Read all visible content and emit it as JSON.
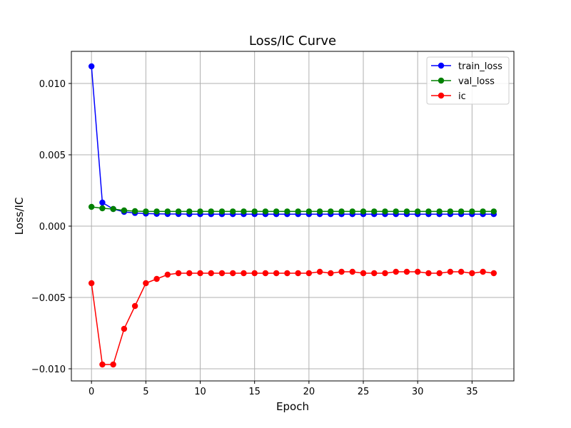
{
  "chart_data": {
    "type": "line",
    "title": "Loss/IC Curve",
    "xlabel": "Epoch",
    "ylabel": "Loss/IC",
    "xlim": [
      -1.85,
      38.85
    ],
    "ylim": [
      -0.01085,
      0.01225
    ],
    "xticks": [
      0,
      5,
      10,
      15,
      20,
      25,
      30,
      35
    ],
    "xtick_labels": [
      "0",
      "5",
      "10",
      "15",
      "20",
      "25",
      "30",
      "35"
    ],
    "yticks": [
      -0.01,
      -0.005,
      0.0,
      0.005,
      0.01
    ],
    "ytick_labels": [
      "−0.010",
      "−0.005",
      "0.000",
      "0.005",
      "0.010"
    ],
    "grid": true,
    "legend_position": "top-right",
    "x": [
      0,
      1,
      2,
      3,
      4,
      5,
      6,
      7,
      8,
      9,
      10,
      11,
      12,
      13,
      14,
      15,
      16,
      17,
      18,
      19,
      20,
      21,
      22,
      23,
      24,
      25,
      26,
      27,
      28,
      29,
      30,
      31,
      32,
      33,
      34,
      35,
      36,
      37
    ],
    "series": [
      {
        "name": "train_loss",
        "color": "#0000ff",
        "values": [
          0.0112,
          0.00165,
          0.0012,
          0.001,
          0.00092,
          0.00088,
          0.00086,
          0.00085,
          0.00085,
          0.00084,
          0.00084,
          0.00084,
          0.00084,
          0.00084,
          0.00084,
          0.00084,
          0.00084,
          0.00084,
          0.00084,
          0.00084,
          0.00084,
          0.00084,
          0.00084,
          0.00084,
          0.00084,
          0.00084,
          0.00084,
          0.00084,
          0.00084,
          0.00084,
          0.00084,
          0.00084,
          0.00084,
          0.00084,
          0.00084,
          0.00084,
          0.00084,
          0.00084
        ]
      },
      {
        "name": "val_loss",
        "color": "#008000",
        "values": [
          0.00135,
          0.00125,
          0.0012,
          0.0011,
          0.00105,
          0.00103,
          0.00103,
          0.00103,
          0.00103,
          0.00103,
          0.00103,
          0.00103,
          0.00103,
          0.00103,
          0.00103,
          0.00103,
          0.00103,
          0.00103,
          0.00103,
          0.00103,
          0.00103,
          0.00103,
          0.00103,
          0.00103,
          0.00103,
          0.00103,
          0.00103,
          0.00103,
          0.00103,
          0.00103,
          0.00103,
          0.00103,
          0.00103,
          0.00103,
          0.00103,
          0.00103,
          0.00103,
          0.00103
        ]
      },
      {
        "name": "ic",
        "color": "#ff0000",
        "values": [
          -0.004,
          -0.0097,
          -0.0097,
          -0.0072,
          -0.0056,
          -0.004,
          -0.0037,
          -0.0034,
          -0.0033,
          -0.0033,
          -0.0033,
          -0.0033,
          -0.0033,
          -0.0033,
          -0.0033,
          -0.0033,
          -0.0033,
          -0.0033,
          -0.0033,
          -0.0033,
          -0.0033,
          -0.0032,
          -0.0033,
          -0.0032,
          -0.0032,
          -0.0033,
          -0.0033,
          -0.0033,
          -0.0032,
          -0.0032,
          -0.0032,
          -0.0033,
          -0.0033,
          -0.0032,
          -0.0032,
          -0.0033,
          -0.0032,
          -0.0033
        ]
      }
    ]
  }
}
